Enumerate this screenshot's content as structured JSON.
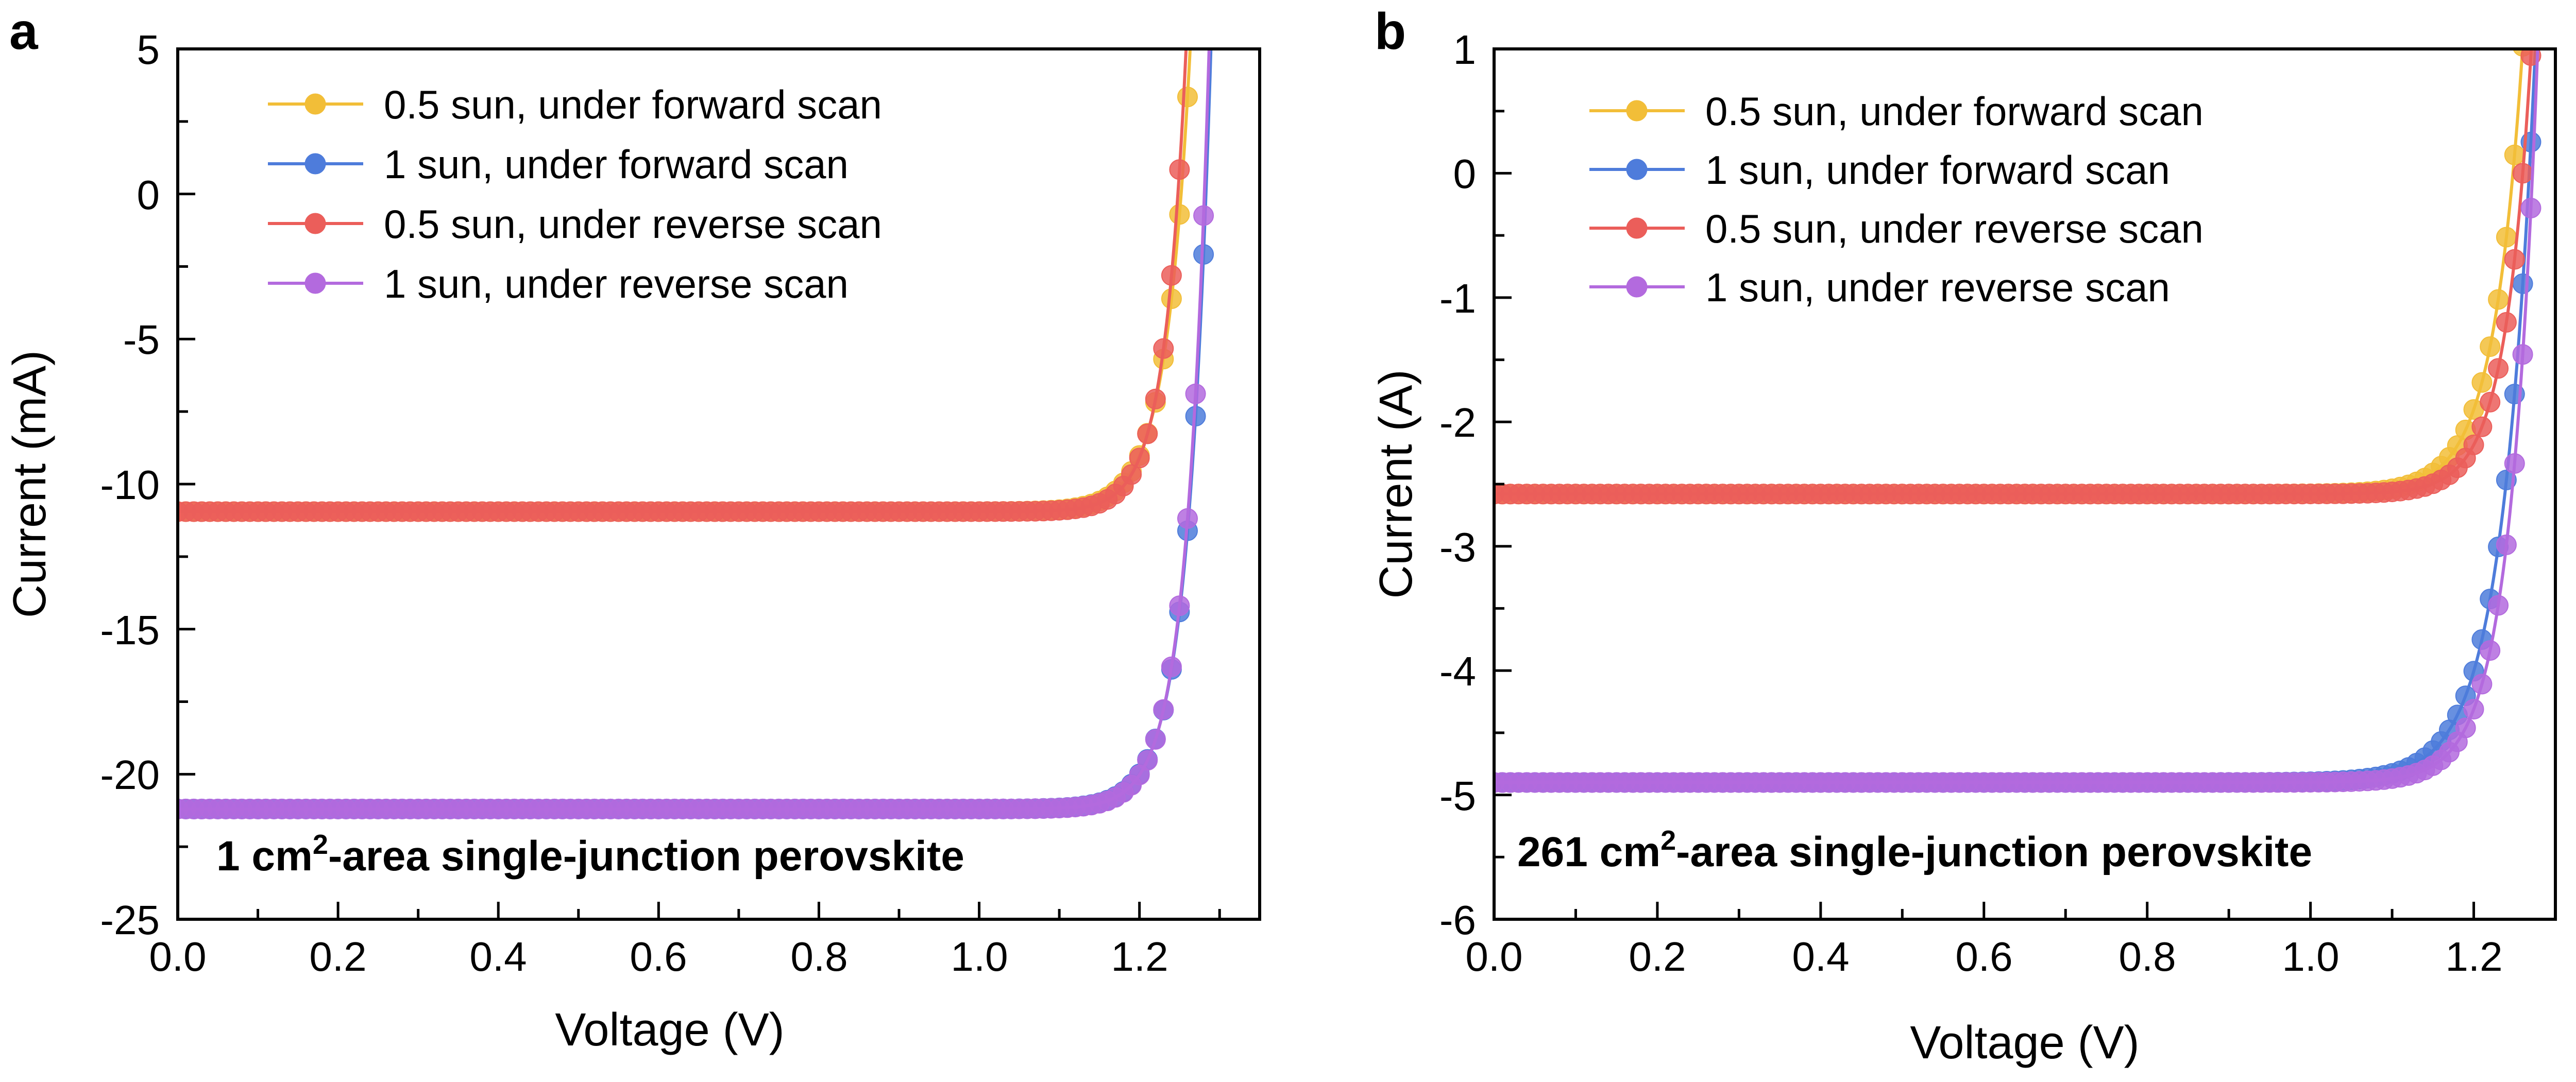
{
  "chart_data": [
    {
      "panel": "a",
      "type": "line",
      "xlabel": "Voltage (V)",
      "ylabel": "Current (mA)",
      "xlim": [
        0.0,
        1.35
      ],
      "ylim": [
        -25,
        5
      ],
      "xticks": [
        "0.0",
        "0.2",
        "0.4",
        "0.6",
        "0.8",
        "1.0",
        "1.2"
      ],
      "yticks": [
        "5",
        "0",
        "-5",
        "-10",
        "-15",
        "-20",
        "-25"
      ],
      "annotation": {
        "pre": "1 cm",
        "sup": "2",
        "post": "-area single-junction perovskite"
      },
      "legend_position": "top-left",
      "series": [
        {
          "name": "0.5 sun, under forward scan",
          "color": "#F2BE38",
          "jsc": -10.95,
          "voc": 1.252,
          "n": 0.03
        },
        {
          "name": "1 sun, under forward scan",
          "color": "#4E7CDB",
          "jsc": -21.2,
          "voc": 1.283,
          "n": 0.029
        },
        {
          "name": "0.5 sun, under reverse scan",
          "color": "#EB5E5A",
          "jsc": -10.95,
          "voc": 1.248,
          "n": 0.027
        },
        {
          "name": "1 sun, under reverse scan",
          "color": "#B36ADE",
          "jsc": -21.2,
          "voc": 1.281,
          "n": 0.028
        }
      ]
    },
    {
      "panel": "b",
      "type": "line",
      "xlabel": "Voltage (V)",
      "ylabel": "Current (A)",
      "xlim": [
        0.0,
        1.3
      ],
      "ylim": [
        -6,
        1
      ],
      "xticks": [
        "0.0",
        "0.2",
        "0.4",
        "0.6",
        "0.8",
        "1.0",
        "1.2"
      ],
      "yticks": [
        "1",
        "0",
        "-1",
        "-2",
        "-3",
        "-4",
        "-5",
        "-6"
      ],
      "annotation": {
        "pre": "261 cm",
        "sup": "2",
        "post": "-area single-junction perovskite"
      },
      "legend_position": "top-left",
      "series": [
        {
          "name": "0.5 sun, under forward scan",
          "color": "#F2BE38",
          "jsc": -2.58,
          "voc": 1.248,
          "n": 0.036
        },
        {
          "name": "1 sun, under forward scan",
          "color": "#4E7CDB",
          "jsc": -4.9,
          "voc": 1.268,
          "n": 0.04
        },
        {
          "name": "0.5 sun, under reverse scan",
          "color": "#EB5E5A",
          "jsc": -2.58,
          "voc": 1.26,
          "n": 0.032
        },
        {
          "name": "1 sun, under reverse scan",
          "color": "#B36ADE",
          "jsc": -4.9,
          "voc": 1.272,
          "n": 0.034
        }
      ]
    }
  ]
}
